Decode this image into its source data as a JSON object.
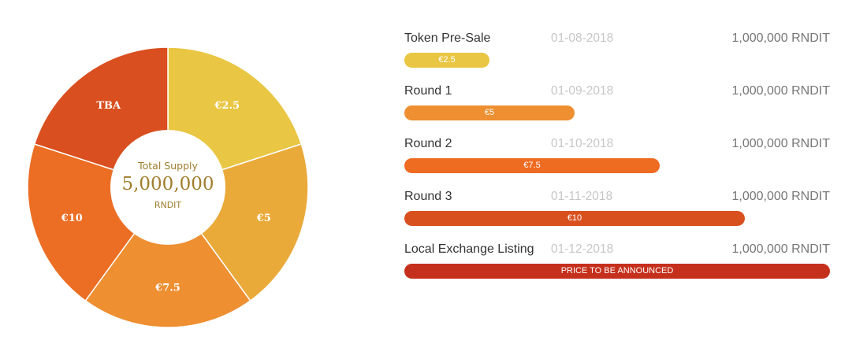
{
  "chart_data": [
    {
      "type": "pie",
      "style": "donut",
      "center": {
        "title": "Total Supply",
        "value": "5,000,000",
        "unit": "RNDIT"
      },
      "slices": [
        {
          "label": "€2.5",
          "value": 1000000,
          "color": "#e9c643"
        },
        {
          "label": "€5",
          "value": 1000000,
          "color": "#eaaa3a"
        },
        {
          "label": "€7.5",
          "value": 1000000,
          "color": "#ee8f32"
        },
        {
          "label": "€10",
          "value": 1000000,
          "color": "#ec6e24"
        },
        {
          "label": "TBA",
          "value": 1000000,
          "color": "#d94f1f"
        }
      ]
    },
    {
      "type": "bar",
      "orientation": "horizontal",
      "rounds": [
        {
          "name": "Token Pre-Sale",
          "date": "01-08-2018",
          "amount": "1,000,000 RNDIT",
          "bar_label": "€2.5",
          "bar_fraction": 0.2,
          "color": "#e9c643"
        },
        {
          "name": "Round 1",
          "date": "01-09-2018",
          "amount": "1,000,000 RNDIT",
          "bar_label": "€5",
          "bar_fraction": 0.4,
          "color": "#ee8f32"
        },
        {
          "name": "Round 2",
          "date": "01-10-2018",
          "amount": "1,000,000 RNDIT",
          "bar_label": "€7.5",
          "bar_fraction": 0.6,
          "color": "#ee6b22"
        },
        {
          "name": "Round 3",
          "date": "01-11-2018",
          "amount": "1,000,000 RNDIT",
          "bar_label": "€10",
          "bar_fraction": 0.8,
          "color": "#d9501f"
        },
        {
          "name": "Local Exchange Listing",
          "date": "01-12-2018",
          "amount": "1,000,000 RNDIT",
          "bar_label": "PRICE TO BE ANNOUNCED",
          "bar_fraction": 1.0,
          "color": "#c5301c"
        }
      ]
    }
  ]
}
